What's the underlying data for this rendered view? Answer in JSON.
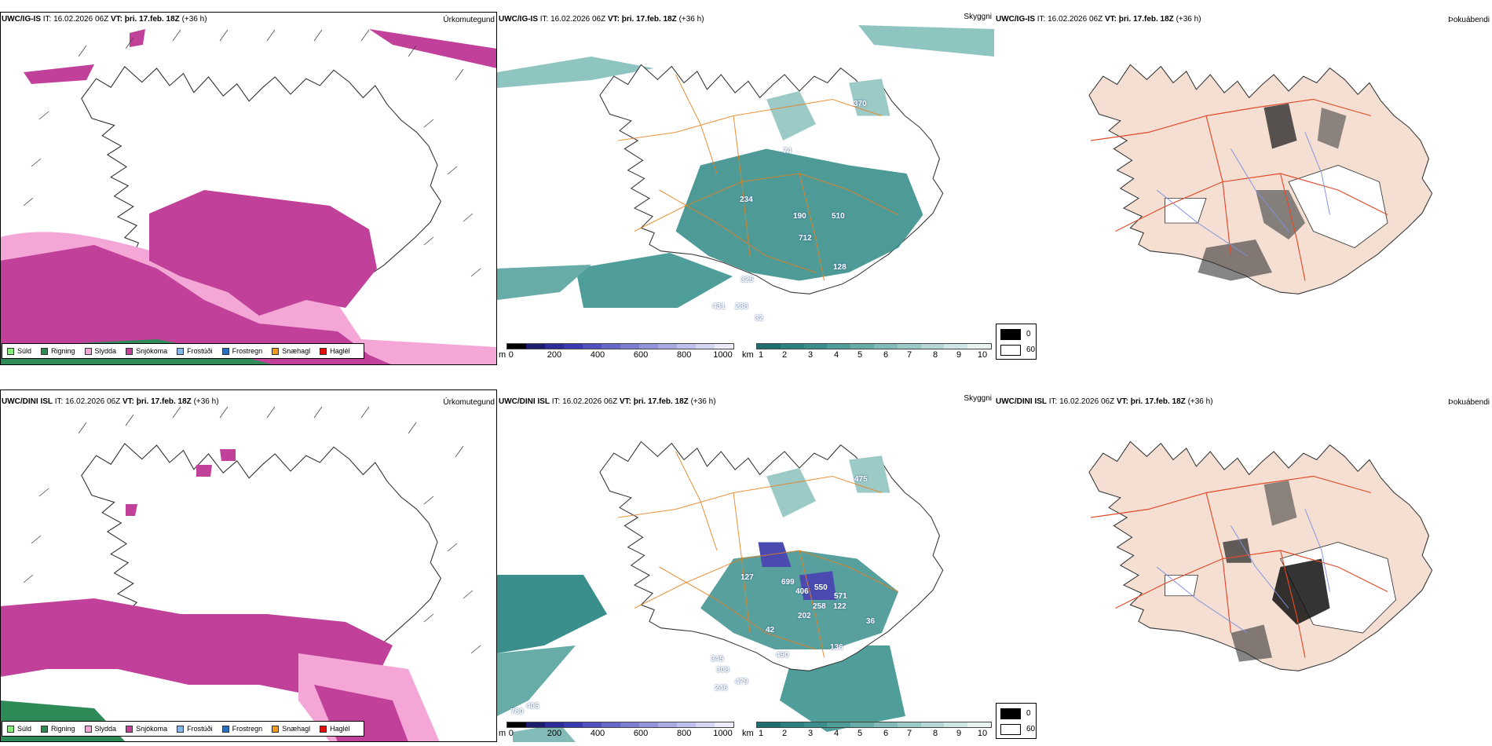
{
  "rows": [
    {
      "model": "UWC/IG-IS",
      "it_label": "IT:",
      "it_value": "16.02.2026 06Z",
      "vt_label": "VT:",
      "vt_value": "þri. 17.feb. 18Z",
      "lead": "(+36 h)",
      "labels_cloud": [
        "370",
        "74",
        "234",
        "190",
        "510",
        "712",
        "128",
        "325",
        "431",
        "238",
        "32"
      ]
    },
    {
      "model": "UWC/DINI ISL",
      "it_label": "IT:",
      "it_value": "16.02.2026 06Z",
      "vt_label": "VT:",
      "vt_value": "þri. 17.feb. 18Z",
      "lead": "(+36 h)",
      "labels_cloud": [
        "475",
        "127",
        "699",
        "406",
        "550",
        "571",
        "258",
        "122",
        "202",
        "42",
        "36",
        "490",
        "136",
        "345",
        "308",
        "479",
        "246",
        "780",
        "405"
      ]
    }
  ],
  "panel_titles": {
    "precip": "Úrkomutegund",
    "cloud": "Skyggni",
    "fog": "Þokuábendi"
  },
  "precip_legend": [
    {
      "label": "Súld",
      "color": "#88ea7b"
    },
    {
      "label": "Rigning",
      "color": "#2e8b57"
    },
    {
      "label": "Slydda",
      "color": "#f4a6d7"
    },
    {
      "label": "Snjókoma",
      "color": "#c0409a"
    },
    {
      "label": "Frostúði",
      "color": "#86b7e8"
    },
    {
      "label": "Frostregn",
      "color": "#2a6fbf"
    },
    {
      "label": "Snæhagl",
      "color": "#f19a1a"
    },
    {
      "label": "Haglél",
      "color": "#e01010"
    }
  ],
  "cloudbase_bar": {
    "unit": "m",
    "ticks": [
      "0",
      "200",
      "400",
      "600",
      "800",
      "1000"
    ],
    "colors": [
      "#000000",
      "#1c1c6e",
      "#2b2b9a",
      "#3a3ab0",
      "#5050c0",
      "#6767c9",
      "#7d7dd2",
      "#9494dc",
      "#aaaae5",
      "#c0c0ee",
      "#d6d6f5",
      "#ececfa"
    ]
  },
  "visibility_bar": {
    "unit": "km",
    "ticks": [
      "1",
      "2",
      "3",
      "4",
      "5",
      "6",
      "7",
      "8",
      "9",
      "10"
    ],
    "colors": [
      "#1f6e6e",
      "#2b8080",
      "#3a8f8c",
      "#4f9e9a",
      "#68aca8",
      "#82bbb7",
      "#9ccac6",
      "#b6d8d5",
      "#d0e6e4",
      "#e9f3f2"
    ]
  },
  "fog_legend": {
    "black_label": "0",
    "white_label": "60"
  }
}
